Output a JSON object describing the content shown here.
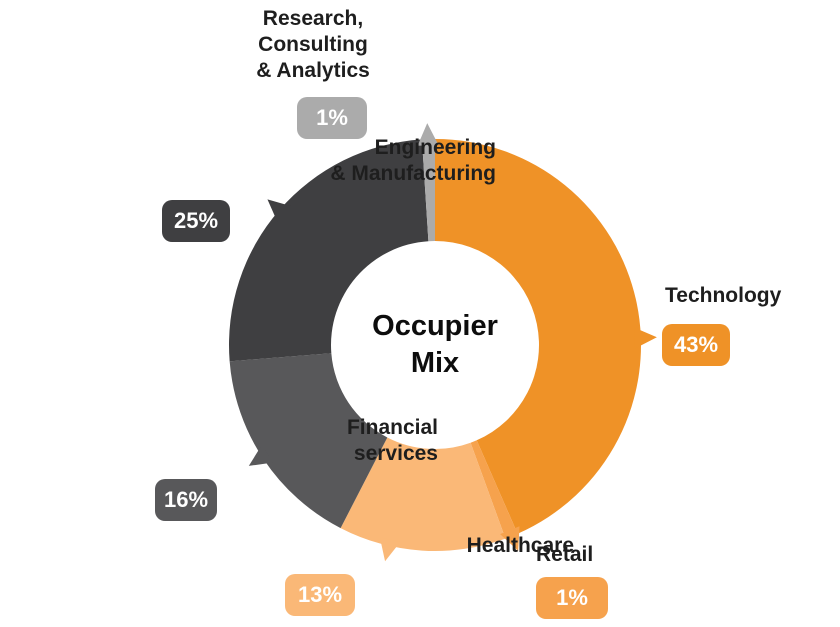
{
  "center_title": "Occupier\nMix",
  "chart_data": {
    "type": "pie",
    "subtype": "donut",
    "title": "Occupier Mix",
    "categories": [
      "Technology",
      "Retail",
      "Healthcare",
      "Financial services",
      "Engineering & Manufacturing",
      "Research, Consulting & Analytics"
    ],
    "values": [
      43,
      1,
      13,
      16,
      25,
      1
    ],
    "unit": "%",
    "colors": [
      "#EF9227",
      "#F6A24D",
      "#FAB877",
      "#58585A",
      "#3F3F41",
      "#ABABAB"
    ],
    "slugs": [
      "technology",
      "retail",
      "healthcare",
      "financial-services",
      "engineering-manufacturing",
      "research-consulting-analytics"
    ],
    "start_angle_deg": 0,
    "direction": "clockwise",
    "pointer_angles_deg": [
      88,
      158,
      193,
      237,
      311,
      358
    ],
    "legend_position": "labels-around-chart",
    "grid": false
  },
  "segments": [
    {
      "slug": "technology",
      "label": "Technology",
      "value_label": "43%",
      "color": "#EF9227"
    },
    {
      "slug": "retail",
      "label": "Retail",
      "value_label": "1%",
      "color": "#F6A24D"
    },
    {
      "slug": "healthcare",
      "label": "Healthcare",
      "value_label": "13%",
      "color": "#FAB877"
    },
    {
      "slug": "financial-services",
      "label": "Financial\nservices",
      "value_label": "16%",
      "color": "#58585A"
    },
    {
      "slug": "engineering-manufacturing",
      "label": "Engineering\n& Manufacturing",
      "value_label": "25%",
      "color": "#3F3F41"
    },
    {
      "slug": "research-consulting-analytics",
      "label": "Research,\nConsulting\n& Analytics",
      "value_label": "1%",
      "color": "#ABABAB"
    }
  ]
}
